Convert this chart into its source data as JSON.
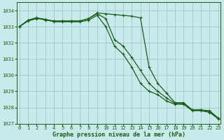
{
  "bg_color": "#c8eaea",
  "grid_color": "#a0c8c8",
  "line_color": "#1a5c1a",
  "text_color": "#1a5c1a",
  "xlabel": "Graphe pression niveau de la mer (hPa)",
  "ylim": [
    1027.0,
    1034.5
  ],
  "xlim": [
    -0.3,
    23.3
  ],
  "yticks": [
    1027,
    1028,
    1029,
    1030,
    1031,
    1032,
    1033,
    1034
  ],
  "xticks": [
    0,
    1,
    2,
    3,
    4,
    5,
    6,
    7,
    8,
    9,
    10,
    11,
    12,
    13,
    14,
    15,
    16,
    17,
    18,
    19,
    20,
    21,
    22,
    23
  ],
  "series": [
    [
      1033.0,
      1033.4,
      1033.55,
      1033.4,
      1033.35,
      1033.35,
      1033.35,
      1033.35,
      1033.5,
      1033.85,
      1033.8,
      1033.75,
      1033.7,
      1033.65,
      1033.55,
      1030.5,
      1029.5,
      1028.9,
      1028.3,
      1028.3,
      1027.85,
      1027.85,
      1027.8,
      1027.35
    ],
    [
      1033.0,
      1033.4,
      1033.55,
      1033.45,
      1033.35,
      1033.35,
      1033.35,
      1033.35,
      1033.5,
      1033.8,
      1033.5,
      1032.2,
      1031.8,
      1031.1,
      1030.3,
      1029.5,
      1029.0,
      1028.6,
      1028.25,
      1028.25,
      1027.85,
      1027.85,
      1027.75,
      1027.35
    ],
    [
      1033.0,
      1033.35,
      1033.5,
      1033.45,
      1033.3,
      1033.3,
      1033.3,
      1033.3,
      1033.4,
      1033.7,
      1033.0,
      1031.8,
      1031.3,
      1030.5,
      1029.5,
      1029.0,
      1028.8,
      1028.4,
      1028.2,
      1028.2,
      1027.8,
      1027.8,
      1027.7,
      1027.3
    ]
  ]
}
